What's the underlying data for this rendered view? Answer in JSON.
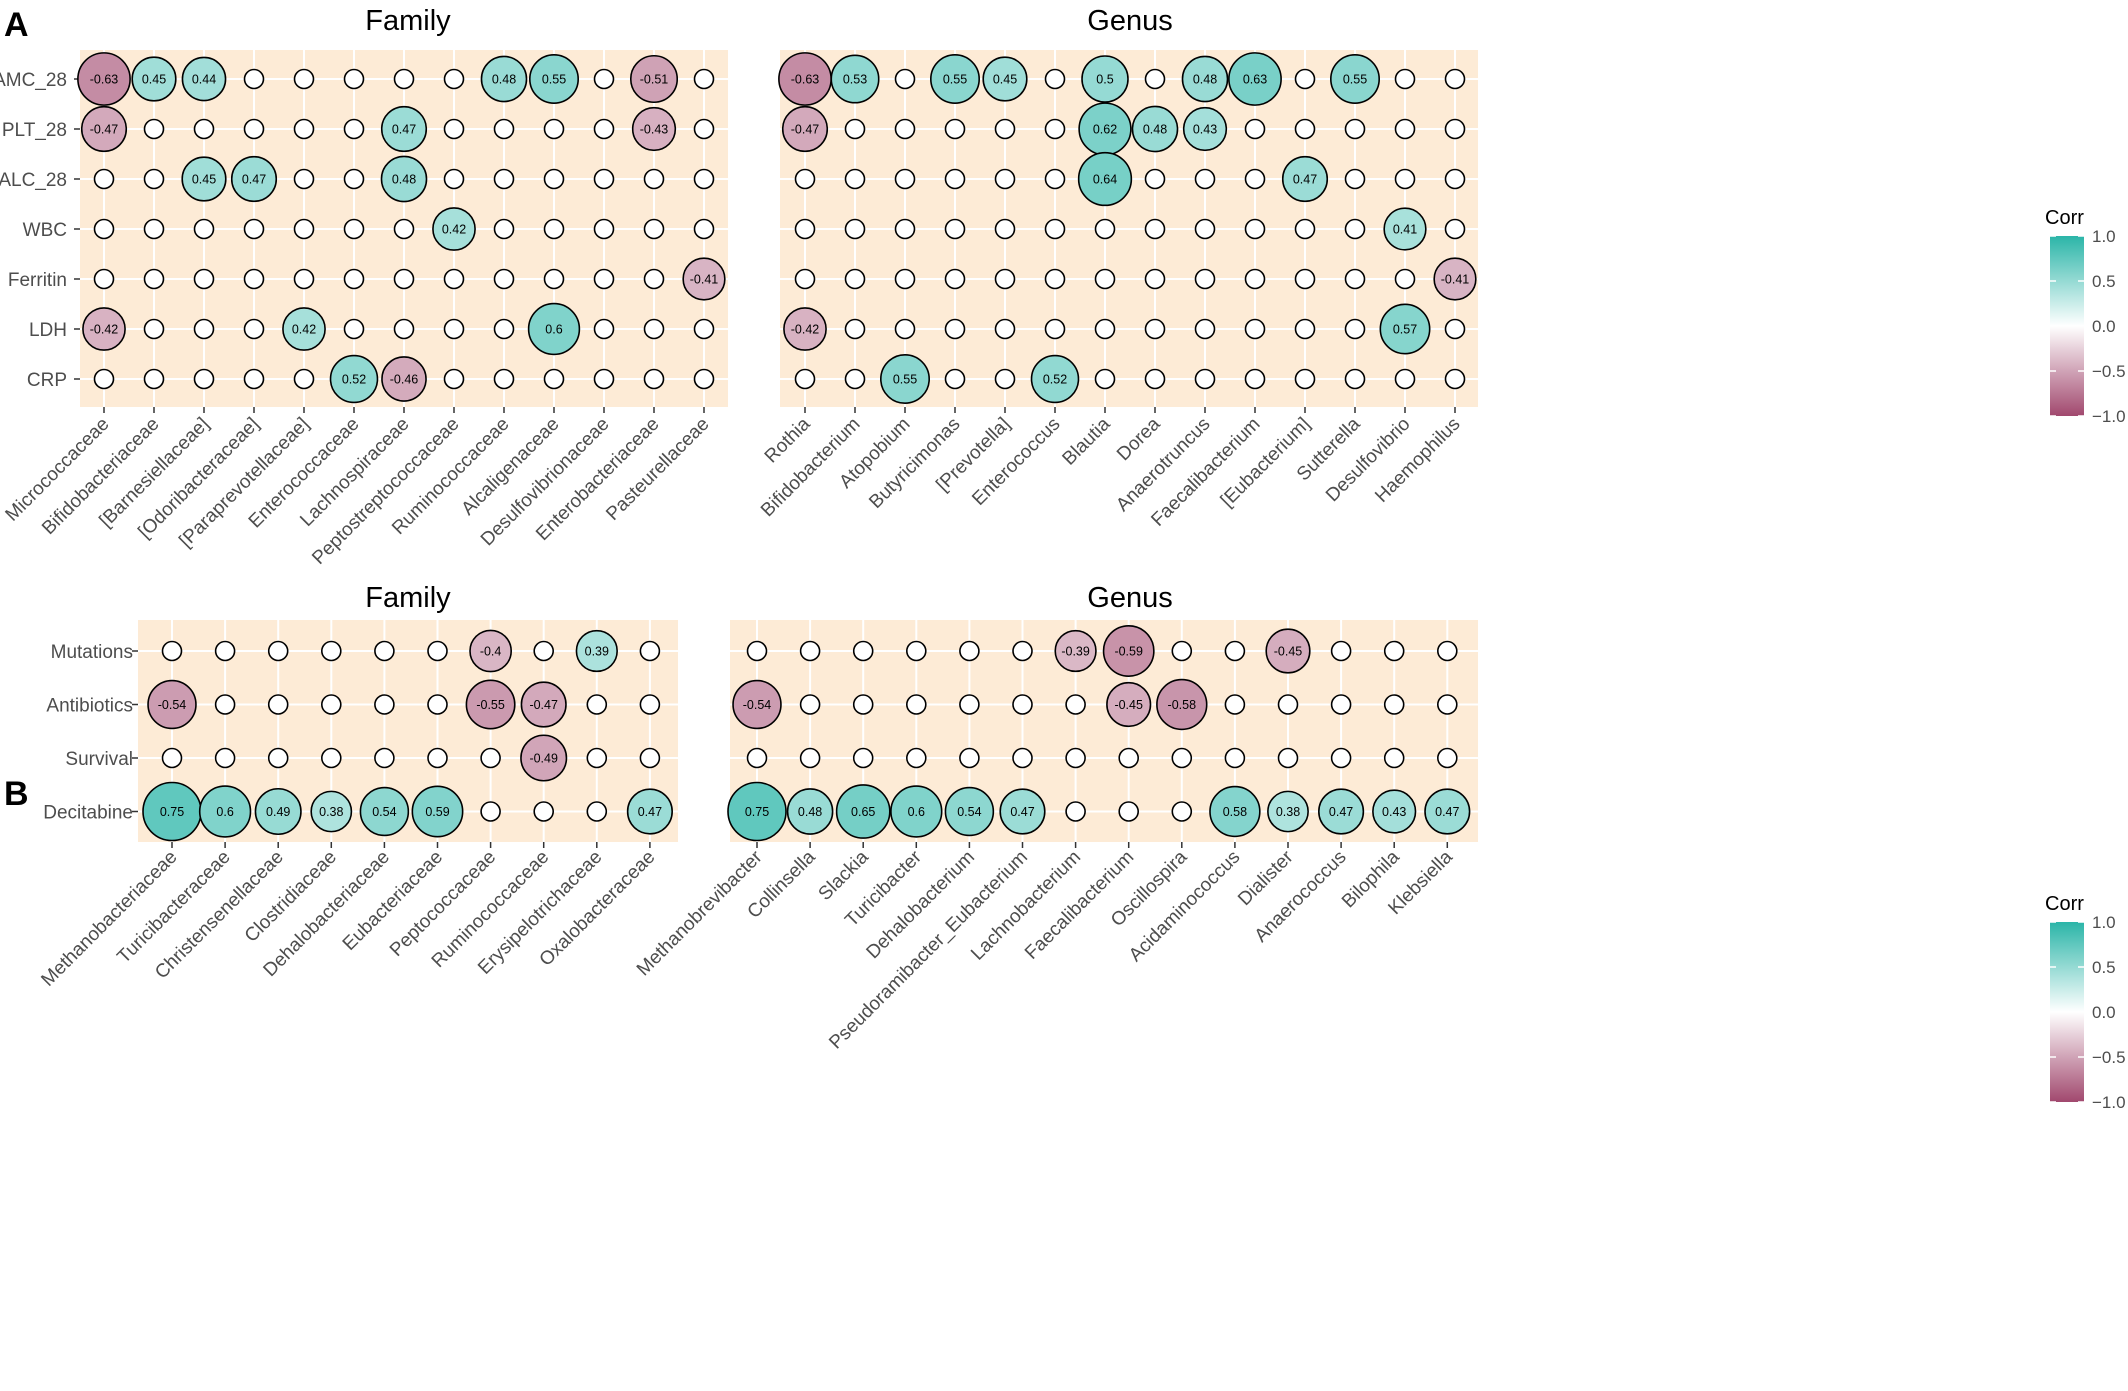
{
  "figure": {
    "panel_a_label": "A",
    "panel_b_label": "B"
  },
  "colors": {
    "panel_bg": "#FDEBD6",
    "grid": "#FFFFFF",
    "positive": "#2BB5A8",
    "negative": "#A1486E",
    "neutral": "#FFFFFF",
    "circle_stroke": "#000000"
  },
  "chart_data": [
    {
      "type": "correlation-dot-matrix",
      "panel": "A",
      "title": "Family",
      "grid": true,
      "x": [
        "Micrococcaceae",
        "Bifidobacteriaceae",
        "[Barnesiellaceae]",
        "[Odoribacteraceae]",
        "[Paraprevotellaceae]",
        "Enterococcaceae",
        "Lachnospiraceae",
        "Peptostreptococcaceae",
        "Ruminococcaceae",
        "Alcaligenaceae",
        "Desulfovibrionaceae",
        "Enterobacteriaceae",
        "Pasteurellaceae"
      ],
      "y": [
        "AMC_28",
        "PLT_28",
        "ALC_28",
        "WBC",
        "Ferritin",
        "LDH",
        "CRP"
      ],
      "values": [
        [
          -0.63,
          0.45,
          0.44,
          null,
          null,
          null,
          null,
          null,
          0.48,
          0.55,
          null,
          -0.51,
          null
        ],
        [
          -0.47,
          null,
          null,
          null,
          null,
          null,
          0.47,
          null,
          null,
          null,
          null,
          -0.43,
          null
        ],
        [
          null,
          null,
          0.45,
          0.47,
          null,
          null,
          0.48,
          null,
          null,
          null,
          null,
          null,
          null
        ],
        [
          null,
          null,
          null,
          null,
          null,
          null,
          null,
          0.42,
          null,
          null,
          null,
          null,
          null
        ],
        [
          null,
          null,
          null,
          null,
          null,
          null,
          null,
          null,
          null,
          null,
          null,
          null,
          -0.41
        ],
        [
          -0.42,
          null,
          null,
          null,
          0.42,
          null,
          null,
          null,
          null,
          0.6,
          null,
          null,
          null
        ],
        [
          null,
          null,
          null,
          null,
          null,
          0.52,
          -0.46,
          null,
          null,
          null,
          null,
          null,
          null
        ]
      ]
    },
    {
      "type": "correlation-dot-matrix",
      "panel": "A",
      "title": "Genus",
      "grid": true,
      "x": [
        "Rothia",
        "Bifidobacterium",
        "Atopobium",
        "Butyricimonas",
        "[Prevotella]",
        "Enterococcus",
        "Blautia",
        "Dorea",
        "Anaerotruncus",
        "Faecalibacterium",
        "[Eubacterium]",
        "Sutterella",
        "Desulfovibrio",
        "Haemophilus"
      ],
      "y": [
        "AMC_28",
        "PLT_28",
        "ALC_28",
        "WBC",
        "Ferritin",
        "LDH",
        "CRP"
      ],
      "values": [
        [
          -0.63,
          0.53,
          null,
          0.55,
          0.45,
          null,
          0.5,
          null,
          0.48,
          0.63,
          null,
          0.55,
          null,
          null
        ],
        [
          -0.47,
          null,
          null,
          null,
          null,
          null,
          0.62,
          0.48,
          0.43,
          null,
          null,
          null,
          null,
          null
        ],
        [
          null,
          null,
          null,
          null,
          null,
          null,
          0.64,
          null,
          null,
          null,
          0.47,
          null,
          null,
          null
        ],
        [
          null,
          null,
          null,
          null,
          null,
          null,
          null,
          null,
          null,
          null,
          null,
          null,
          0.41,
          null
        ],
        [
          null,
          null,
          null,
          null,
          null,
          null,
          null,
          null,
          null,
          null,
          null,
          null,
          null,
          -0.41
        ],
        [
          -0.42,
          null,
          null,
          null,
          null,
          null,
          null,
          null,
          null,
          null,
          null,
          null,
          0.57,
          null
        ],
        [
          null,
          null,
          0.55,
          null,
          null,
          0.52,
          null,
          null,
          null,
          null,
          null,
          null,
          null,
          null
        ]
      ]
    },
    {
      "type": "correlation-dot-matrix",
      "panel": "B",
      "title": "Family",
      "grid": true,
      "x": [
        "Methanobacteriaceae",
        "Turicibacteraceae",
        "Christensenellaceae",
        "Clostridiaceae",
        "Dehalobacteriaceae",
        "Eubacteriaceae",
        "Peptococcaceae",
        "Ruminococcaceae",
        "Erysipelotrichaceae",
        "Oxalobacteraceae"
      ],
      "y": [
        "Mutations",
        "Antibiotics",
        "Survival",
        "Decitabine"
      ],
      "values": [
        [
          null,
          null,
          null,
          null,
          null,
          null,
          -0.4,
          null,
          0.39,
          null
        ],
        [
          -0.54,
          null,
          null,
          null,
          null,
          null,
          -0.55,
          -0.47,
          null,
          null
        ],
        [
          null,
          null,
          null,
          null,
          null,
          null,
          null,
          -0.49,
          null,
          null
        ],
        [
          0.75,
          0.6,
          0.49,
          0.38,
          0.54,
          0.59,
          null,
          null,
          null,
          0.47
        ]
      ]
    },
    {
      "type": "correlation-dot-matrix",
      "panel": "B",
      "title": "Genus",
      "grid": true,
      "x": [
        "Methanobrevibacter",
        "Collinsella",
        "Slackia",
        "Turicibacter",
        "Dehalobacterium",
        "Pseudoramibacter_Eubacterium",
        "Lachnobacterium",
        "Faecalibacterium",
        "Oscillospira",
        "Acidaminococcus",
        "Dialister",
        "Anaerococcus",
        "Bilophila",
        "Klebsiella"
      ],
      "y": [
        "Mutations",
        "Antibiotics",
        "Survival",
        "Decitabine"
      ],
      "values": [
        [
          null,
          null,
          null,
          null,
          null,
          null,
          -0.39,
          -0.59,
          null,
          null,
          -0.45,
          null,
          null,
          null
        ],
        [
          -0.54,
          null,
          null,
          null,
          null,
          null,
          null,
          -0.45,
          -0.58,
          null,
          null,
          null,
          null,
          null
        ],
        [
          null,
          null,
          null,
          null,
          null,
          null,
          null,
          null,
          null,
          null,
          null,
          null,
          null,
          null
        ],
        [
          0.75,
          0.48,
          0.65,
          0.6,
          0.54,
          0.47,
          null,
          null,
          null,
          0.58,
          0.38,
          0.47,
          0.43,
          0.47
        ]
      ]
    }
  ],
  "legends": [
    {
      "title": "Corr",
      "range": [
        -1.0,
        1.0
      ],
      "ticks": [
        "1.0",
        "0.5",
        "0.0",
        "−0.5",
        "−1.0"
      ],
      "tick_values": [
        1.0,
        0.5,
        0.0,
        -0.5,
        -1.0
      ]
    },
    {
      "title": "Corr",
      "range": [
        -1.0,
        1.0
      ],
      "ticks": [
        "1.0",
        "0.5",
        "0.0",
        "−0.5",
        "−1.0"
      ],
      "tick_values": [
        1.0,
        0.5,
        0.0,
        -0.5,
        -1.0
      ]
    }
  ]
}
